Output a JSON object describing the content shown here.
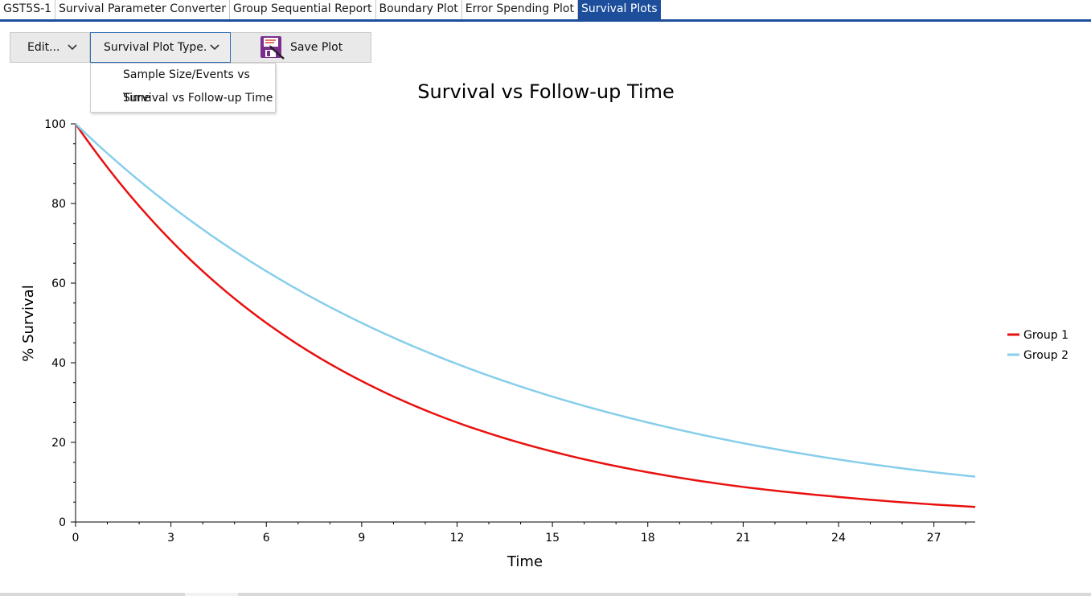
{
  "tabs": [
    {
      "label": "GST5S-1",
      "active": false
    },
    {
      "label": "Survival Parameter Converter",
      "active": false
    },
    {
      "label": "Group Sequential Report",
      "active": false
    },
    {
      "label": "Boundary Plot",
      "active": false
    },
    {
      "label": "Error Spending Plot",
      "active": false
    },
    {
      "label": "Survival Plots",
      "active": true
    }
  ],
  "toolbar": {
    "edit_label": "Edit...",
    "plot_type_label": "Survival Plot Type.",
    "save_label": "Save Plot"
  },
  "dropdown": {
    "items": [
      "Sample Size/Events vs Time",
      "Survival vs Follow-up Time"
    ]
  },
  "colors": {
    "accent": "#1c4e9c",
    "group1": "#e8110f",
    "group2": "#87ceeb",
    "save_icon": "#7b2d8e"
  },
  "icons": {
    "dropdown_chevron": "chevron-down-icon",
    "save": "save-plot-icon"
  },
  "chart_data": {
    "type": "line",
    "title": "Survival vs Follow-up Time",
    "xlabel": "Time",
    "ylabel": "% Survival",
    "xlim": [
      0,
      28.3
    ],
    "ylim": [
      0,
      100
    ],
    "x_ticks": [
      0,
      3,
      6,
      9,
      12,
      15,
      18,
      21,
      24,
      27
    ],
    "y_ticks": [
      0,
      20,
      40,
      60,
      80,
      100
    ],
    "legend_position": "right",
    "grid": false,
    "series": [
      {
        "name": "Group 1",
        "color": "#e8110f",
        "x": [
          0,
          3,
          6,
          9,
          12,
          15,
          18,
          21,
          24,
          27,
          28.3
        ],
        "y": [
          100,
          70.7,
          50.0,
          35.4,
          25.0,
          17.7,
          12.5,
          8.8,
          6.3,
          4.4,
          3.8
        ]
      },
      {
        "name": "Group 2",
        "color": "#87ceeb",
        "x": [
          0,
          3,
          6,
          9,
          12,
          15,
          18,
          21,
          24,
          27,
          28.3
        ],
        "y": [
          100,
          79.4,
          63.0,
          50.0,
          39.7,
          31.5,
          25.0,
          19.8,
          15.7,
          12.5,
          11.4
        ]
      }
    ]
  }
}
